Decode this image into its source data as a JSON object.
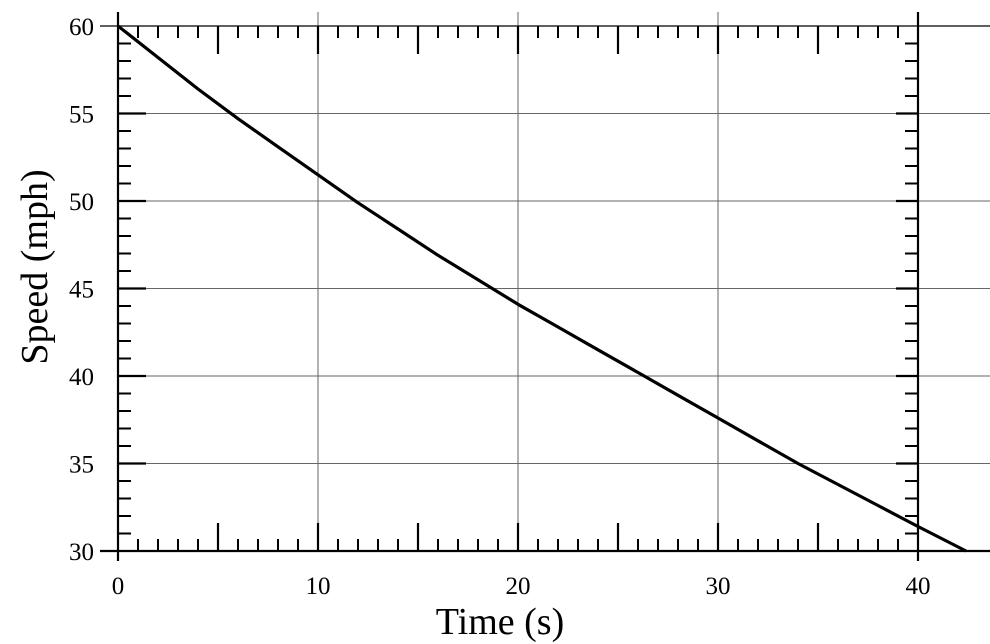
{
  "chart_data": {
    "type": "line",
    "title": "",
    "xlabel": "Time (s)",
    "ylabel": "Speed (mph)",
    "xlim": [
      0,
      42.5
    ],
    "ylim": [
      30,
      60
    ],
    "x_ticks": [
      0,
      10,
      20,
      30,
      40
    ],
    "y_ticks": [
      30,
      35,
      40,
      45,
      50,
      55,
      60
    ],
    "grid": true,
    "legend": "none",
    "series": [
      {
        "color": "#000000",
        "x": [
          0,
          2,
          4,
          6,
          8,
          10,
          12,
          14,
          16,
          18,
          20,
          22,
          24,
          26,
          28,
          30,
          32,
          34,
          36,
          38,
          40,
          42.4
        ],
        "y": [
          60,
          58.2,
          56.4,
          54.7,
          53.1,
          51.5,
          49.9,
          48.4,
          46.9,
          45.5,
          44.1,
          42.8,
          41.5,
          40.2,
          38.9,
          37.6,
          36.3,
          35.0,
          33.8,
          32.6,
          31.4,
          30.0
        ]
      }
    ]
  }
}
